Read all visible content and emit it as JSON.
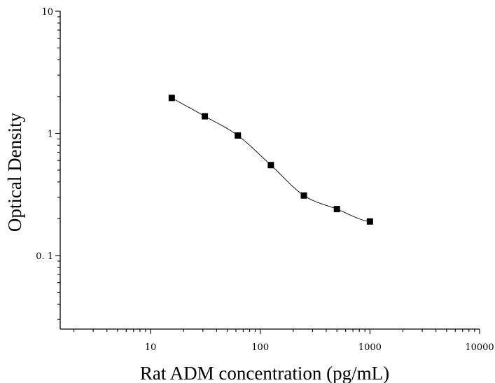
{
  "chart_data": {
    "type": "scatter",
    "title": "",
    "xlabel": "Rat ADM concentration (pg/mL)",
    "ylabel": "Optical Density",
    "x_scale": "log",
    "y_scale": "log",
    "xlim": [
      1.5,
      10000
    ],
    "ylim": [
      0.025,
      10
    ],
    "x_ticks": [
      {
        "value": 10,
        "label": "10"
      },
      {
        "value": 100,
        "label": "100"
      },
      {
        "value": 1000,
        "label": "1000"
      },
      {
        "value": 10000,
        "label": "10000"
      }
    ],
    "y_ticks": [
      {
        "value": 0.1,
        "label": "0. 1"
      },
      {
        "value": 1,
        "label": "1"
      },
      {
        "value": 10,
        "label": "10"
      }
    ],
    "grid": false,
    "legend": "none",
    "series": [
      {
        "marker": "square",
        "color": "#000000",
        "x": [
          15.6,
          31.25,
          62.5,
          125,
          250,
          500,
          1000
        ],
        "y": [
          1.95,
          1.38,
          0.96,
          0.55,
          0.31,
          0.24,
          0.19
        ]
      }
    ],
    "fit_curve": {
      "type": "four-parameter logistic",
      "color": "#000000",
      "x_range": [
        15.6,
        1000
      ]
    }
  }
}
